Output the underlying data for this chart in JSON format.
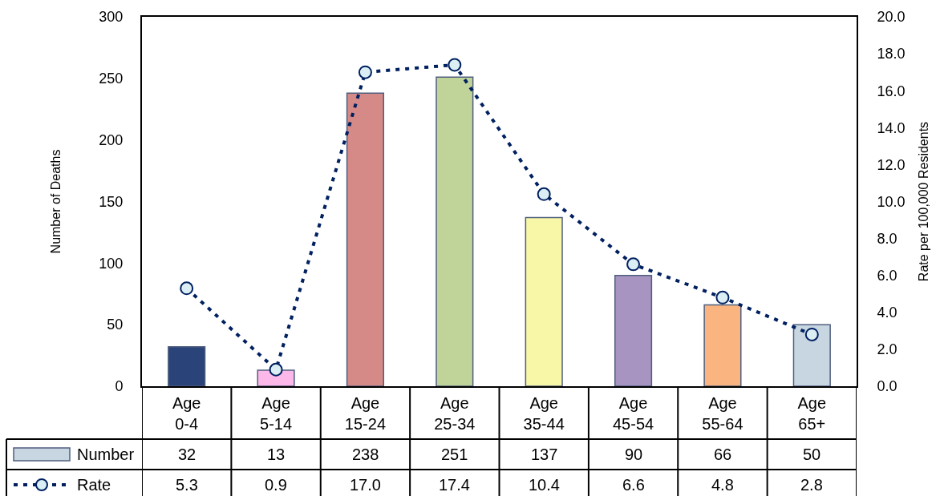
{
  "chart_data": {
    "type": "bar",
    "categories": [
      "Age 0-4",
      "Age 5-14",
      "Age 15-24",
      "Age 25-34",
      "Age 35-44",
      "Age 45-54",
      "Age 55-64",
      "Age 65+"
    ],
    "series": [
      {
        "name": "Number",
        "color": "#c8d6e2",
        "colors": [
          "#2a4378",
          "#fcb8e8",
          "#d68a88",
          "#c0d49a",
          "#f8f7a8",
          "#a794c0",
          "#f9b47f",
          "#c8d6e2"
        ],
        "values": [
          32,
          13,
          238,
          251,
          137,
          90,
          66,
          50
        ],
        "value_labels": [
          "32",
          "13",
          "238",
          "251",
          "137",
          "90",
          "66",
          "50"
        ]
      },
      {
        "name": "Rate",
        "type": "line",
        "axis": "y2",
        "color": "#002060",
        "marker": "circle",
        "line_style": "dotted",
        "values": [
          5.3,
          0.9,
          17.0,
          17.4,
          10.4,
          6.6,
          4.8,
          2.8
        ],
        "value_labels": [
          "5.3",
          "0.9",
          "17.0",
          "17.4",
          "10.4",
          "6.6",
          "4.8",
          "2.8"
        ]
      }
    ],
    "ylabel": "Number of Deaths",
    "y2label": "Rate per 100,000 Residents",
    "ylim": [
      0,
      300
    ],
    "yticks": [
      0,
      50,
      100,
      150,
      200,
      250,
      300
    ],
    "y2lim": [
      0,
      20
    ],
    "y2ticks": [
      {
        "value": 0,
        "label": "0.0"
      },
      {
        "value": 2,
        "label": "2.0"
      },
      {
        "value": 4,
        "label": "4.0"
      },
      {
        "value": 6,
        "label": "6.0"
      },
      {
        "value": 8,
        "label": "8.0"
      },
      {
        "value": 10,
        "label": "10.0"
      },
      {
        "value": 12,
        "label": "12.0"
      },
      {
        "value": 14,
        "label": "14.0"
      },
      {
        "value": 16,
        "label": "16.0"
      },
      {
        "value": 18,
        "label": "18.0"
      },
      {
        "value": 20,
        "label": "20.0"
      }
    ],
    "legend": "bottom left"
  }
}
